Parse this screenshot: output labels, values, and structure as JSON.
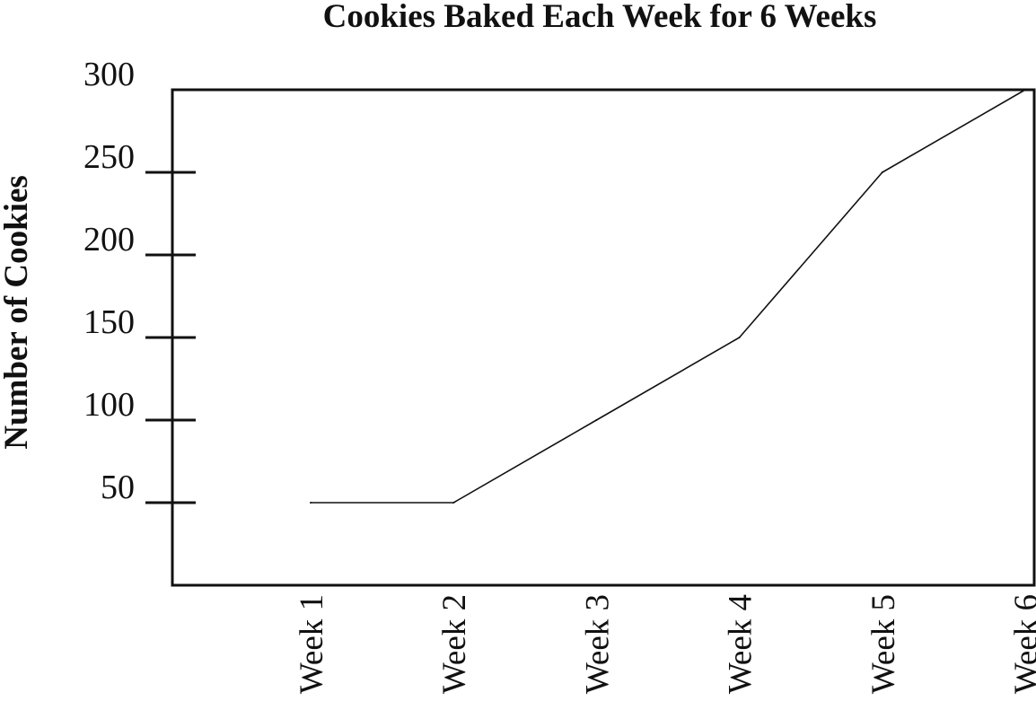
{
  "chart_data": {
    "type": "line",
    "title": "Cookies Baked Each Week for 6 Weeks",
    "ylabel": "Number of Cookies",
    "xlabel": "",
    "categories": [
      "Week 1",
      "Week 2",
      "Week 3",
      "Week 4",
      "Week 5",
      "Week 6"
    ],
    "values": [
      50,
      50,
      100,
      150,
      250,
      300
    ],
    "yticks": [
      50,
      100,
      150,
      200,
      250,
      300
    ],
    "ylim": [
      0,
      300
    ],
    "grid": false,
    "legend": "none",
    "line_color": "#111111"
  }
}
